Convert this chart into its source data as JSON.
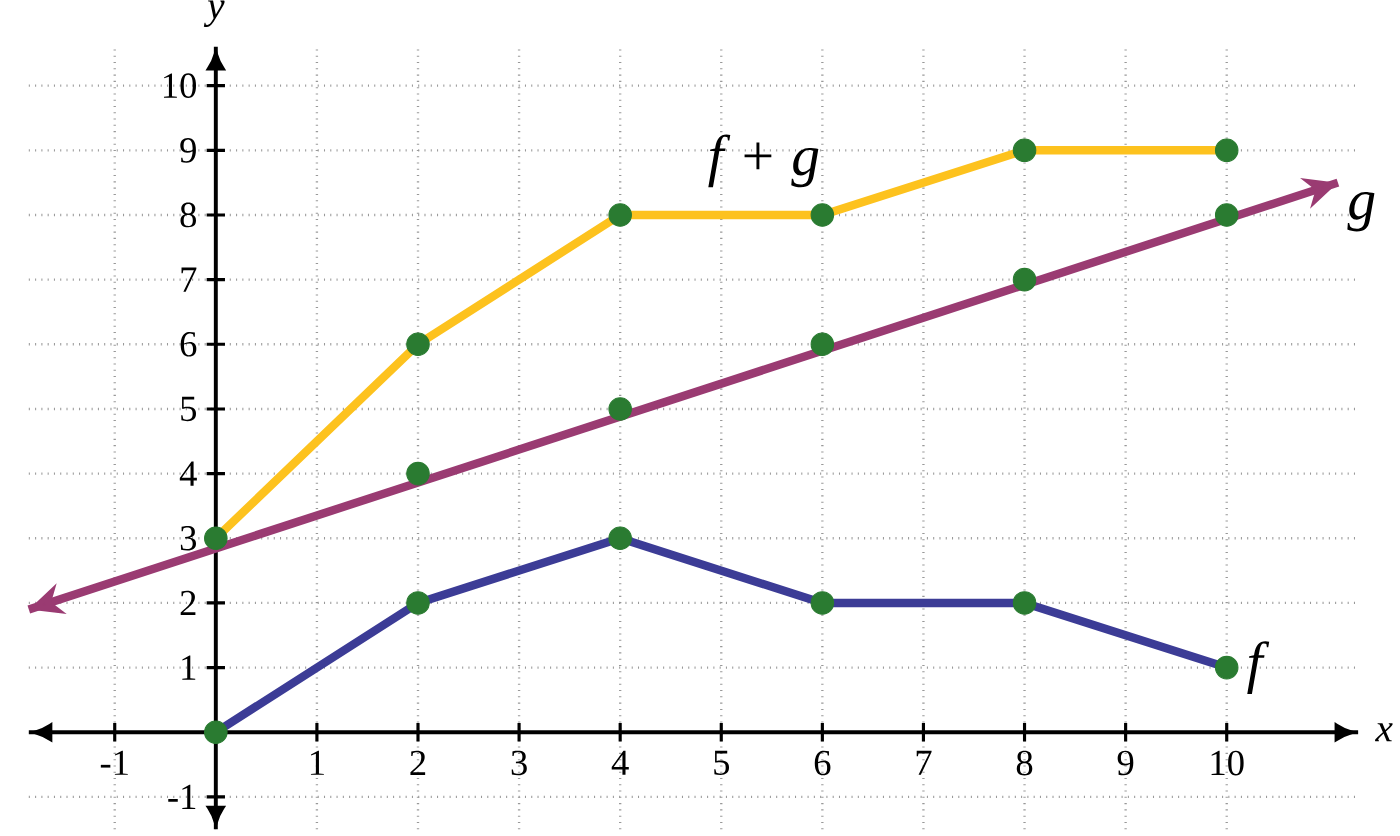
{
  "chart_data": {
    "type": "line",
    "xlabel": "x",
    "ylabel": "y",
    "xlim": [
      -1.85,
      11.3
    ],
    "ylim": [
      -1.5,
      10.6
    ],
    "xticks": [
      -1,
      1,
      2,
      3,
      4,
      5,
      6,
      7,
      8,
      9,
      10
    ],
    "yticks": [
      -1,
      1,
      2,
      3,
      4,
      5,
      6,
      7,
      8,
      9,
      10
    ],
    "grid": true,
    "line_style": "solid",
    "series": [
      {
        "name": "f",
        "type": "line",
        "color": "#3c3c96",
        "x": [
          0,
          2,
          4,
          6,
          8,
          10
        ],
        "values": [
          0,
          2,
          3,
          2,
          2,
          1
        ]
      },
      {
        "name": "g",
        "type": "line",
        "color": "#9a3b72",
        "x": [
          -1.85,
          11.1
        ],
        "values": [
          1.9,
          8.5
        ]
      },
      {
        "name": "f + g",
        "type": "line",
        "color": "#fdc21e",
        "x": [
          0,
          2,
          4,
          6,
          8,
          10
        ],
        "values": [
          3,
          6,
          8,
          8,
          9,
          9
        ]
      },
      {
        "type": "scatter",
        "color": "#2a7b31",
        "marker": "circle",
        "x": [
          0,
          2,
          4,
          6,
          8,
          10,
          0,
          2,
          4,
          6,
          8,
          10,
          2,
          4,
          6,
          8,
          10
        ],
        "values": [
          0,
          2,
          3,
          2,
          2,
          1,
          3,
          4,
          5,
          6,
          7,
          8,
          6,
          8,
          8,
          9,
          9
        ]
      }
    ]
  }
}
